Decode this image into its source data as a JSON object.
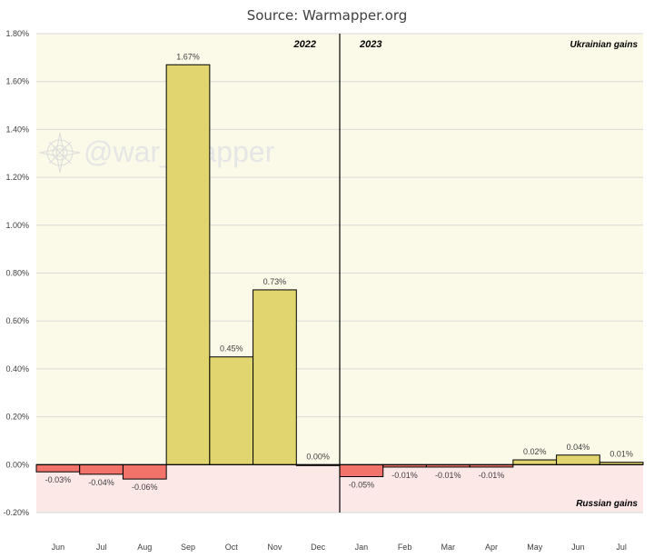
{
  "header": {
    "source": "Source: Warmapper.org"
  },
  "watermark": {
    "text": "@war_mapper",
    "icon": "compass-rose-icon"
  },
  "chart_data": {
    "type": "bar",
    "categories": [
      "Jun",
      "Jul",
      "Aug",
      "Sep",
      "Oct",
      "Nov",
      "Dec",
      "Jan",
      "Feb",
      "Mar",
      "Apr",
      "May",
      "Jun",
      "Jul"
    ],
    "values": [
      -0.03,
      -0.04,
      -0.06,
      1.67,
      0.45,
      0.73,
      0.0,
      -0.05,
      -0.01,
      -0.01,
      -0.01,
      0.02,
      0.04,
      0.01
    ],
    "data_labels": [
      "-0.03%",
      "-0.04%",
      "-0.06%",
      "1.67%",
      "0.45%",
      "0.73%",
      "0.00%",
      "-0.05%",
      "-0.01%",
      "-0.01%",
      "-0.01%",
      "0.02%",
      "0.04%",
      "0.01%"
    ],
    "ylim": [
      -0.2,
      1.8
    ],
    "yticks": [
      -0.2,
      0.0,
      0.2,
      0.4,
      0.6,
      0.8,
      1.0,
      1.2,
      1.4,
      1.6,
      1.8
    ],
    "ytick_labels": [
      "-0.20%",
      "0.00%",
      "0.20%",
      "0.40%",
      "0.60%",
      "0.80%",
      "1.00%",
      "1.20%",
      "1.40%",
      "1.60%",
      "1.80%"
    ],
    "year_labels": [
      "2022",
      "2023"
    ],
    "year_divider_after_index": 6,
    "region_labels": {
      "positive": "Ukrainian gains",
      "negative": "Russian gains"
    },
    "colors": {
      "positive_bar": "#e0d56e",
      "negative_bar": "#f2736a",
      "positive_bg": "#fbfae8",
      "negative_bg": "#fde8e8",
      "bar_outline": "#000000"
    },
    "grid": true,
    "legend": "none"
  }
}
